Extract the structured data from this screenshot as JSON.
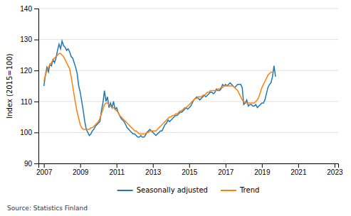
{
  "chart_data": {
    "type": "line",
    "y_label": "Index (2015=100)",
    "source": "Source: Statistics Finland",
    "xlim": [
      2006.7,
      2023.2
    ],
    "xticks": [
      2007,
      2009,
      2011,
      2013,
      2015,
      2017,
      2019,
      2021,
      2023
    ],
    "ylim": [
      90,
      140
    ],
    "yticks": [
      90,
      100,
      110,
      120,
      130,
      140
    ],
    "grid": true,
    "legend": "bottom",
    "series": [
      {
        "name": "Seasonally adjusted",
        "x": [
          2007,
          2007.083333,
          2007.166667,
          2007.25,
          2007.333333,
          2007.416667,
          2007.5,
          2007.583333,
          2007.666667,
          2007.75,
          2007.833333,
          2007.916667,
          2008,
          2008.083333,
          2008.166667,
          2008.25,
          2008.333333,
          2008.416667,
          2008.5,
          2008.583333,
          2008.666667,
          2008.75,
          2008.833333,
          2008.916667,
          2009,
          2009.083333,
          2009.166667,
          2009.25,
          2009.333333,
          2009.416667,
          2009.5,
          2009.583333,
          2009.666667,
          2009.75,
          2009.833333,
          2009.916667,
          2010,
          2010.083333,
          2010.166667,
          2010.25,
          2010.333333,
          2010.416667,
          2010.5,
          2010.583333,
          2010.666667,
          2010.75,
          2010.833333,
          2010.916667,
          2011,
          2011.083333,
          2011.166667,
          2011.25,
          2011.333333,
          2011.416667,
          2011.5,
          2011.583333,
          2011.666667,
          2011.75,
          2011.833333,
          2011.916667,
          2012,
          2012.083333,
          2012.166667,
          2012.25,
          2012.333333,
          2012.416667,
          2012.5,
          2012.583333,
          2012.666667,
          2012.75,
          2012.833333,
          2012.916667,
          2013,
          2013.083333,
          2013.166667,
          2013.25,
          2013.333333,
          2013.416667,
          2013.5,
          2013.583333,
          2013.666667,
          2013.75,
          2013.833333,
          2013.916667,
          2014,
          2014.083333,
          2014.166667,
          2014.25,
          2014.333333,
          2014.416667,
          2014.5,
          2014.583333,
          2014.666667,
          2014.75,
          2014.833333,
          2014.916667,
          2015,
          2015.083333,
          2015.166667,
          2015.25,
          2015.333333,
          2015.416667,
          2015.5,
          2015.583333,
          2015.666667,
          2015.75,
          2015.833333,
          2015.916667,
          2016,
          2016.083333,
          2016.166667,
          2016.25,
          2016.333333,
          2016.416667,
          2016.5,
          2016.583333,
          2016.666667,
          2016.75,
          2016.833333,
          2016.916667,
          2017,
          2017.083333,
          2017.166667,
          2017.25,
          2017.333333,
          2017.416667,
          2017.5,
          2017.583333,
          2017.666667,
          2017.75,
          2017.833333,
          2017.916667,
          2018,
          2018.083333,
          2018.166667,
          2018.25,
          2018.333333,
          2018.416667,
          2018.5,
          2018.583333,
          2018.666667,
          2018.75,
          2018.833333,
          2018.916667,
          2019,
          2019.083333,
          2019.166667,
          2019.25,
          2019.333333,
          2019.416667,
          2019.5,
          2019.583333,
          2019.666667,
          2019.75
        ],
        "values": [
          115.0,
          118.5,
          121.0,
          119.5,
          122.0,
          121.5,
          123.5,
          122.5,
          124.0,
          126.5,
          128.5,
          127.0,
          129.5,
          128.0,
          127.5,
          126.5,
          127.0,
          126.0,
          124.5,
          124.0,
          122.5,
          121.0,
          119.0,
          115.0,
          113.0,
          110.0,
          107.0,
          103.5,
          101.0,
          100.0,
          99.0,
          99.5,
          100.5,
          101.0,
          102.0,
          102.5,
          103.0,
          103.5,
          107.0,
          109.5,
          113.5,
          110.0,
          111.5,
          108.0,
          109.5,
          108.0,
          110.0,
          107.5,
          108.0,
          106.5,
          105.5,
          104.5,
          104.0,
          103.5,
          102.5,
          101.5,
          101.0,
          100.5,
          100.0,
          99.5,
          99.5,
          99.0,
          98.5,
          98.5,
          99.0,
          98.5,
          98.5,
          99.0,
          100.0,
          100.5,
          101.0,
          100.5,
          100.0,
          99.5,
          99.0,
          99.5,
          100.0,
          100.5,
          100.5,
          101.5,
          102.5,
          103.0,
          104.0,
          103.5,
          104.0,
          104.5,
          105.0,
          105.5,
          105.5,
          106.0,
          106.5,
          106.5,
          107.0,
          107.5,
          108.0,
          107.5,
          108.0,
          108.5,
          109.5,
          110.5,
          111.0,
          111.5,
          111.0,
          110.5,
          111.0,
          111.5,
          112.0,
          111.5,
          112.0,
          112.5,
          113.0,
          113.0,
          112.5,
          113.0,
          114.0,
          113.5,
          113.5,
          114.0,
          115.5,
          115.0,
          115.5,
          115.0,
          115.5,
          116.0,
          115.5,
          115.0,
          114.5,
          115.0,
          115.5,
          115.5,
          115.5,
          114.5,
          109.0,
          109.5,
          110.5,
          108.5,
          109.0,
          109.0,
          108.5,
          108.5,
          109.0,
          108.0,
          108.5,
          109.0,
          109.5,
          109.5,
          110.5,
          112.5,
          114.5,
          115.5,
          116.0,
          118.0,
          121.5,
          118.0
        ]
      },
      {
        "name": "Trend",
        "x": [
          2007,
          2007.083333,
          2007.166667,
          2007.25,
          2007.333333,
          2007.416667,
          2007.5,
          2007.583333,
          2007.666667,
          2007.75,
          2007.833333,
          2007.916667,
          2008,
          2008.083333,
          2008.166667,
          2008.25,
          2008.333333,
          2008.416667,
          2008.5,
          2008.583333,
          2008.666667,
          2008.75,
          2008.833333,
          2008.916667,
          2009,
          2009.083333,
          2009.166667,
          2009.25,
          2009.333333,
          2009.416667,
          2009.5,
          2009.583333,
          2009.666667,
          2009.75,
          2009.833333,
          2009.916667,
          2010,
          2010.083333,
          2010.166667,
          2010.25,
          2010.333333,
          2010.416667,
          2010.5,
          2010.583333,
          2010.666667,
          2010.75,
          2010.833333,
          2010.916667,
          2011,
          2011.083333,
          2011.166667,
          2011.25,
          2011.333333,
          2011.416667,
          2011.5,
          2011.583333,
          2011.666667,
          2011.75,
          2011.833333,
          2011.916667,
          2012,
          2012.083333,
          2012.166667,
          2012.25,
          2012.333333,
          2012.416667,
          2012.5,
          2012.583333,
          2012.666667,
          2012.75,
          2012.833333,
          2012.916667,
          2013,
          2013.083333,
          2013.166667,
          2013.25,
          2013.333333,
          2013.416667,
          2013.5,
          2013.583333,
          2013.666667,
          2013.75,
          2013.833333,
          2013.916667,
          2014,
          2014.083333,
          2014.166667,
          2014.25,
          2014.333333,
          2014.416667,
          2014.5,
          2014.583333,
          2014.666667,
          2014.75,
          2014.833333,
          2014.916667,
          2015,
          2015.083333,
          2015.166667,
          2015.25,
          2015.333333,
          2015.416667,
          2015.5,
          2015.583333,
          2015.666667,
          2015.75,
          2015.833333,
          2015.916667,
          2016,
          2016.083333,
          2016.166667,
          2016.25,
          2016.333333,
          2016.416667,
          2016.5,
          2016.583333,
          2016.666667,
          2016.75,
          2016.833333,
          2016.916667,
          2017,
          2017.083333,
          2017.166667,
          2017.25,
          2017.333333,
          2017.416667,
          2017.5,
          2017.583333,
          2017.666667,
          2017.75,
          2017.833333,
          2017.916667,
          2018,
          2018.083333,
          2018.166667,
          2018.25,
          2018.333333,
          2018.416667,
          2018.5,
          2018.583333,
          2018.666667,
          2018.75,
          2018.833333,
          2018.916667,
          2019,
          2019.083333,
          2019.166667,
          2019.25,
          2019.333333,
          2019.416667,
          2019.5,
          2019.583333
        ],
        "values": [
          116.5,
          118.5,
          120.0,
          121.0,
          122.0,
          122.5,
          123.5,
          124.0,
          124.5,
          125.0,
          125.5,
          125.5,
          125.0,
          124.5,
          123.5,
          122.5,
          121.5,
          120.5,
          118.0,
          115.0,
          112.0,
          109.0,
          106.5,
          104.5,
          102.5,
          101.5,
          101.0,
          101.0,
          101.0,
          101.0,
          101.0,
          101.5,
          101.5,
          102.0,
          102.5,
          103.0,
          103.5,
          104.5,
          106.0,
          107.5,
          109.0,
          109.5,
          109.5,
          109.0,
          108.5,
          108.0,
          108.0,
          107.5,
          107.0,
          106.5,
          105.5,
          105.0,
          104.5,
          104.0,
          103.5,
          103.0,
          102.5,
          102.0,
          101.5,
          101.0,
          100.5,
          100.5,
          100.0,
          99.5,
          99.5,
          99.5,
          99.5,
          99.5,
          100.0,
          100.0,
          100.5,
          100.5,
          100.5,
          100.5,
          100.5,
          101.0,
          101.5,
          102.0,
          102.5,
          103.0,
          103.5,
          104.0,
          104.5,
          105.0,
          105.0,
          105.5,
          105.5,
          106.0,
          106.0,
          106.5,
          107.0,
          107.0,
          107.5,
          108.0,
          108.0,
          108.5,
          109.0,
          109.5,
          110.0,
          110.5,
          111.0,
          111.0,
          111.5,
          111.5,
          111.5,
          112.0,
          112.0,
          112.5,
          113.0,
          113.0,
          113.5,
          113.5,
          113.5,
          113.5,
          113.5,
          114.0,
          114.0,
          114.5,
          114.5,
          115.0,
          115.0,
          115.0,
          115.0,
          115.0,
          115.0,
          115.0,
          114.5,
          114.0,
          113.5,
          112.5,
          111.5,
          110.5,
          110.0,
          109.5,
          109.5,
          109.5,
          109.5,
          109.5,
          109.5,
          109.5,
          110.0,
          110.5,
          111.5,
          113.0,
          114.5,
          115.5,
          116.5,
          117.5,
          118.5,
          119.0,
          119.5,
          119.5
        ]
      }
    ]
  }
}
